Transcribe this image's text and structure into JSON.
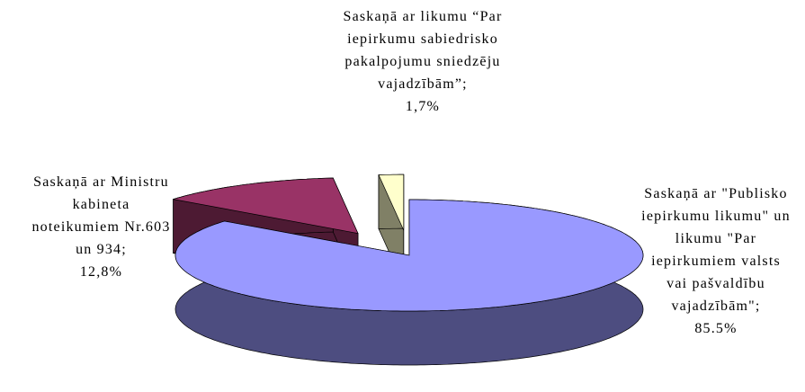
{
  "chart_data": {
    "type": "pie",
    "categories": [
      "Saskaņā ar \"Publisko iepirkumu likumu\" un likumu \"Par iepirkumiem valsts vai pašvaldību vajadzībām\";",
      "Saskaņā ar Ministru kabineta noteikumiem Nr.603 un 934;",
      "Saskaņā ar likumu “Par iepirkumu sabiedrisko pakalpojumu sniedzēju vajadzībām”;"
    ],
    "values": [
      85.5,
      12.8,
      1.7
    ],
    "value_labels": [
      "85.5%",
      "12,8%",
      "1,7%"
    ],
    "colors": [
      "#9999ff",
      "#993366",
      "#ffffcc"
    ]
  }
}
